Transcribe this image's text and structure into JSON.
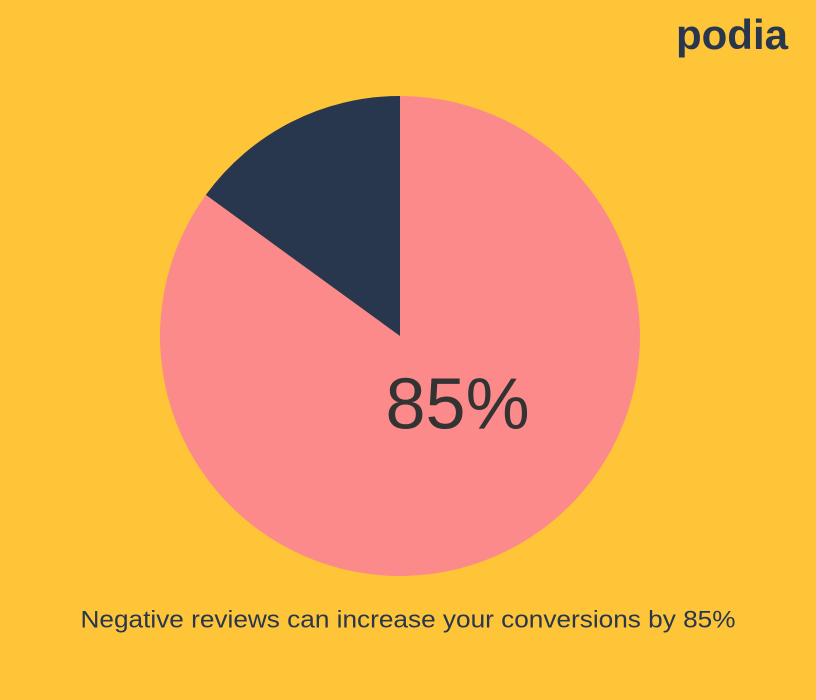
{
  "logo": "podia",
  "chart_data": {
    "type": "pie",
    "caption": "Negative reviews can increase your conversions by 85%",
    "values": [
      85,
      15
    ],
    "value_labels": [
      "85%",
      null
    ],
    "colors": [
      "#fc8a8a",
      "#28364e"
    ],
    "background": "#fec538"
  }
}
